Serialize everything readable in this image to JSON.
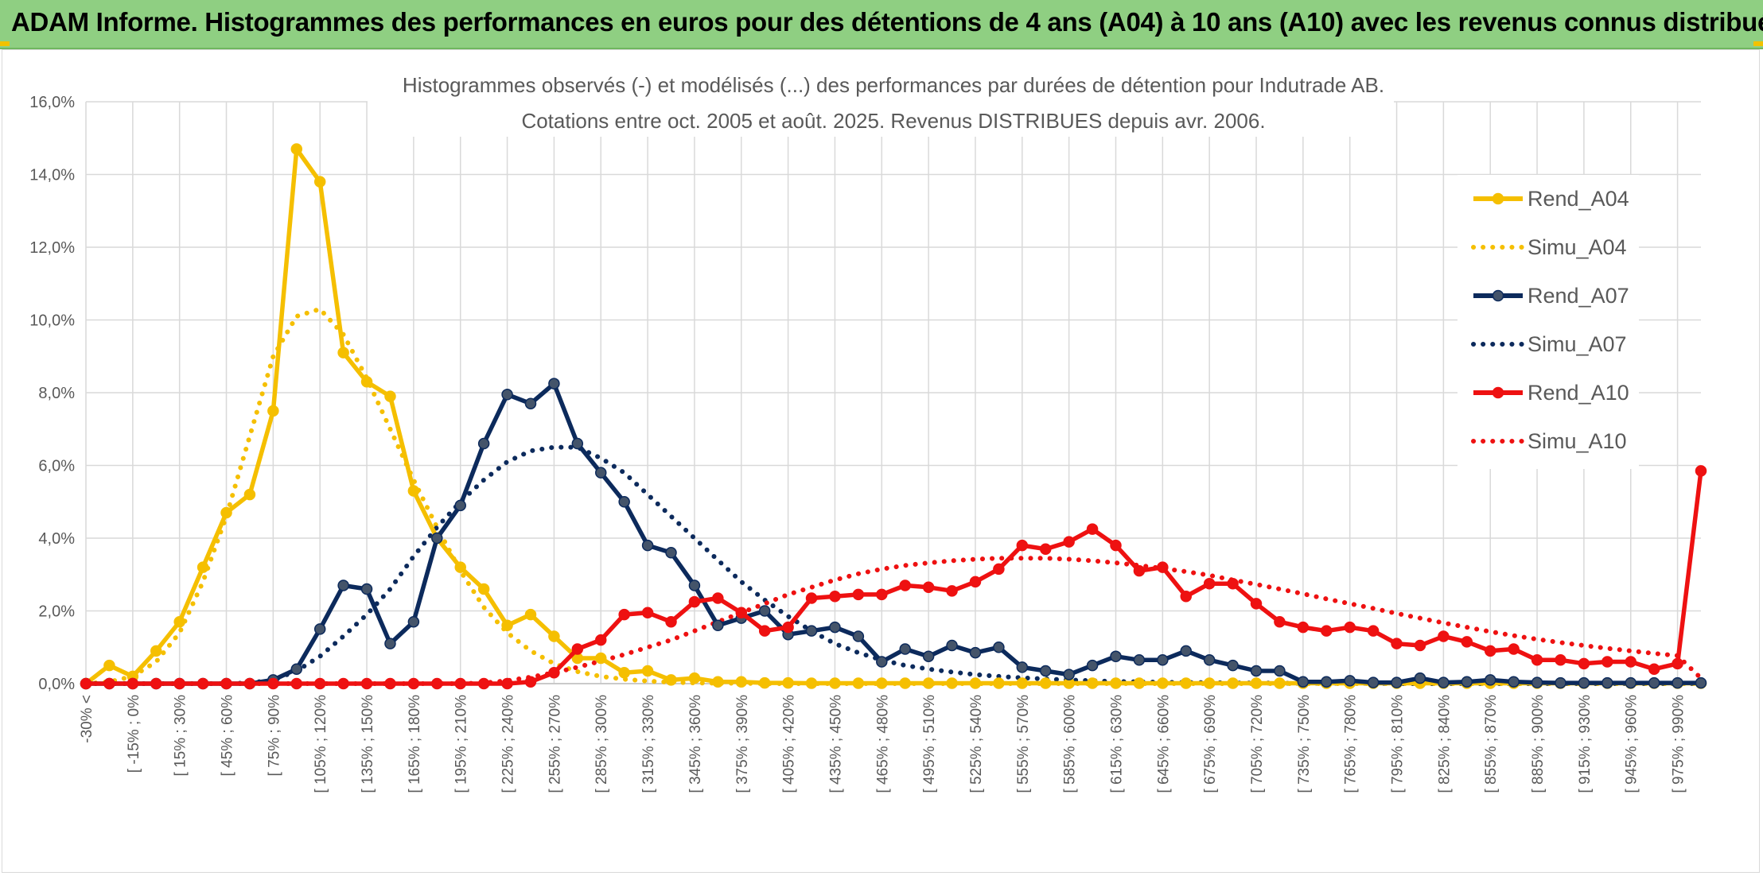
{
  "header": {
    "title": "ADAM Informe. Histogrammes des performances en euros pour des détentions de 4 ans (A04) à 10 ans (A10) avec les revenus connus distribués"
  },
  "chart_data": {
    "type": "line",
    "title": "Histogrammes observés (-) et modélisés (...) des performances par durées de détention pour Indutrade AB.",
    "subtitle": "Cotations entre oct. 2005 et août. 2025. Revenus DISTRIBUES depuis avr. 2006.",
    "xlabel": "",
    "ylabel": "",
    "ylim": [
      0,
      16
    ],
    "y_ticks": [
      "0,0%",
      "2,0%",
      "4,0%",
      "6,0%",
      "8,0%",
      "10,0%",
      "12,0%",
      "14,0%",
      "16,0%"
    ],
    "grid": true,
    "legend_position": "right",
    "x_tick_labels": [
      "-30% <",
      "[ -15% ; 0%",
      "[ 15% ; 30%",
      "[ 45% ; 60%",
      "[ 75% ; 90%",
      "[ 105% ; 120%",
      "[ 135% ; 150%",
      "[ 165% ; 180%",
      "[ 195% ; 210%",
      "[ 225% ; 240%",
      "[ 255% ; 270%",
      "[ 285% ; 300%",
      "[ 315% ; 330%",
      "[ 345% ; 360%",
      "[ 375% ; 390%",
      "[ 405% ; 420%",
      "[ 435% ; 450%",
      "[ 465% ; 480%",
      "[ 495% ; 510%",
      "[ 525% ; 540%",
      "[ 555% ; 570%",
      "[ 585% ; 600%",
      "[ 615% ; 630%",
      "[ 645% ; 660%",
      "[ 675% ; 690%",
      "[ 705% ; 720%",
      "[ 735% ; 750%",
      "[ 765% ; 780%",
      "[ 795% ; 810%",
      "[ 825% ; 840%",
      "[ 855% ; 870%",
      "[ 885% ; 900%",
      "[ 915% ; 930%",
      "[ 945% ; 960%",
      "[ 975% ; 990%"
    ],
    "series": [
      {
        "name": "Rend_A04",
        "color": "#f5bf00",
        "style": "solid",
        "markers": true,
        "values": [
          0.0,
          0.5,
          0.2,
          0.9,
          1.7,
          3.2,
          4.7,
          5.2,
          7.5,
          14.7,
          13.8,
          9.1,
          8.3,
          7.9,
          5.3,
          4.0,
          3.2,
          2.6,
          1.6,
          1.9,
          1.3,
          0.7,
          0.7,
          0.3,
          0.35,
          0.1,
          0.15,
          0.05,
          0.05,
          0.02,
          0.02,
          0.01,
          0.01,
          0.01,
          0.01,
          0.01,
          0.01,
          0.01,
          0.01,
          0.01,
          0.01,
          0.01,
          0.01,
          0.01,
          0.01,
          0.01,
          0.01,
          0.01,
          0.01,
          0.01,
          0.01,
          0.01,
          0.01,
          0.01,
          0.01,
          0.01,
          0.01,
          0.01,
          0.01,
          0.01,
          0.01,
          0.01,
          0.01,
          0.01,
          0.01,
          0.01,
          0.01,
          0.01,
          0.01,
          0.01
        ]
      },
      {
        "name": "Simu_A04",
        "color": "#f5bf00",
        "style": "dotted",
        "markers": false,
        "values": [
          0.0,
          0.05,
          0.2,
          0.6,
          1.4,
          2.8,
          4.6,
          6.8,
          9.0,
          10.1,
          10.3,
          9.6,
          8.4,
          7.0,
          5.6,
          4.3,
          3.1,
          2.1,
          1.4,
          0.9,
          0.55,
          0.33,
          0.2,
          0.12,
          0.07,
          0.04,
          0.02,
          0.01,
          0.01,
          0.0,
          0.0,
          0.0,
          0.0,
          0.0,
          0.0,
          0.0,
          0.0,
          0.0,
          0.0,
          0.0,
          0.0,
          0.0,
          0.0,
          0.0,
          0.0,
          0.0,
          0.0,
          0.0,
          0.0,
          0.0,
          0.0,
          0.0,
          0.0,
          0.0,
          0.0,
          0.0,
          0.0,
          0.0,
          0.0,
          0.0,
          0.0,
          0.0,
          0.0,
          0.0,
          0.0,
          0.0,
          0.0,
          0.0,
          0.0,
          0.0
        ]
      },
      {
        "name": "Rend_A07",
        "color": "#0c2a5c",
        "style": "solid",
        "markers": true,
        "values": [
          0.0,
          0.0,
          0.0,
          0.0,
          0.0,
          0.0,
          0.0,
          0.0,
          0.1,
          0.4,
          1.5,
          2.7,
          2.6,
          1.1,
          1.7,
          4.0,
          4.9,
          6.6,
          7.95,
          7.7,
          8.25,
          6.6,
          5.8,
          5.0,
          3.8,
          3.6,
          2.7,
          1.6,
          1.8,
          2.0,
          1.35,
          1.45,
          1.55,
          1.3,
          0.6,
          0.95,
          0.75,
          1.05,
          0.85,
          1.0,
          0.45,
          0.35,
          0.25,
          0.5,
          0.75,
          0.65,
          0.65,
          0.9,
          0.65,
          0.5,
          0.35,
          0.35,
          0.05,
          0.05,
          0.08,
          0.03,
          0.03,
          0.15,
          0.03,
          0.05,
          0.1,
          0.05,
          0.03,
          0.02,
          0.02,
          0.02,
          0.02,
          0.02,
          0.02,
          0.02
        ]
      },
      {
        "name": "Simu_A07",
        "color": "#0c2a5c",
        "style": "dotted",
        "markers": false,
        "values": [
          0.0,
          0.0,
          0.0,
          0.0,
          0.0,
          0.0,
          0.0,
          0.02,
          0.1,
          0.35,
          0.75,
          1.3,
          1.9,
          2.6,
          3.5,
          4.3,
          5.0,
          5.6,
          6.1,
          6.4,
          6.5,
          6.5,
          6.2,
          5.8,
          5.2,
          4.6,
          4.0,
          3.4,
          2.8,
          2.3,
          1.85,
          1.45,
          1.1,
          0.85,
          0.65,
          0.5,
          0.4,
          0.32,
          0.25,
          0.2,
          0.16,
          0.13,
          0.1,
          0.08,
          0.06,
          0.05,
          0.04,
          0.03,
          0.03,
          0.02,
          0.02,
          0.01,
          0.01,
          0.01,
          0.01,
          0.01,
          0.0,
          0.0,
          0.0,
          0.0,
          0.0,
          0.0,
          0.0,
          0.0,
          0.0,
          0.0,
          0.0,
          0.0,
          0.0,
          0.0
        ]
      },
      {
        "name": "Rend_A10",
        "color": "#ee1111",
        "style": "solid",
        "markers": true,
        "values": [
          0.0,
          0.0,
          0.0,
          0.0,
          0.0,
          0.0,
          0.0,
          0.0,
          0.0,
          0.0,
          0.0,
          0.0,
          0.0,
          0.0,
          0.0,
          0.0,
          0.0,
          0.0,
          0.0,
          0.05,
          0.3,
          0.95,
          1.2,
          1.9,
          1.95,
          1.7,
          2.25,
          2.35,
          1.95,
          1.45,
          1.55,
          2.35,
          2.4,
          2.45,
          2.45,
          2.7,
          2.65,
          2.55,
          2.8,
          3.15,
          3.8,
          3.7,
          3.9,
          4.25,
          3.8,
          3.1,
          3.2,
          2.4,
          2.75,
          2.75,
          2.2,
          1.7,
          1.55,
          1.45,
          1.55,
          1.45,
          1.1,
          1.05,
          1.3,
          1.15,
          0.9,
          0.95,
          0.65,
          0.65,
          0.55,
          0.6,
          0.6,
          0.4,
          0.55,
          5.85
        ]
      },
      {
        "name": "Simu_A10",
        "color": "#ee1111",
        "style": "dotted",
        "markers": false,
        "values": [
          0.0,
          0.0,
          0.0,
          0.0,
          0.0,
          0.0,
          0.0,
          0.0,
          0.0,
          0.0,
          0.0,
          0.0,
          0.0,
          0.0,
          0.0,
          0.0,
          0.0,
          0.02,
          0.08,
          0.18,
          0.3,
          0.45,
          0.62,
          0.8,
          1.0,
          1.2,
          1.45,
          1.7,
          1.95,
          2.2,
          2.45,
          2.65,
          2.85,
          3.02,
          3.15,
          3.25,
          3.32,
          3.38,
          3.42,
          3.45,
          3.45,
          3.45,
          3.42,
          3.38,
          3.32,
          3.25,
          3.17,
          3.08,
          2.98,
          2.85,
          2.73,
          2.6,
          2.47,
          2.33,
          2.2,
          2.07,
          1.93,
          1.8,
          1.67,
          1.55,
          1.43,
          1.32,
          1.22,
          1.13,
          1.05,
          0.97,
          0.9,
          0.83,
          0.77,
          0.15
        ]
      }
    ]
  }
}
